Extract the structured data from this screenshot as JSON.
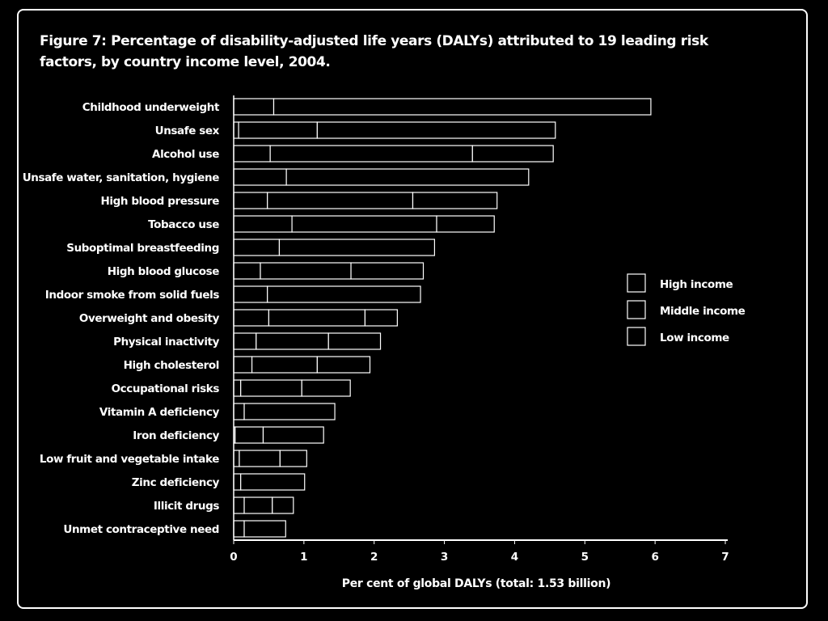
{
  "title": "Figure 7: Percentage of disability-adjusted life years (DALYs) attributed to 19 leading risk factors, by country income level, 2004.",
  "chart_data": {
    "type": "bar",
    "orientation": "horizontal",
    "stacked": true,
    "title": "Figure 7: Percentage of disability-adjusted life years (DALYs) attributed to 19 leading risk factors, by country income level, 2004.",
    "xlabel": "Per cent of global DALYs (total: 1.53 billion)",
    "ylabel": "",
    "xlim": [
      0,
      7
    ],
    "xticks": [
      "0",
      "1",
      "2",
      "3",
      "4",
      "5",
      "6",
      "7"
    ],
    "grid": false,
    "legend_position": "right",
    "categories": [
      "Childhood underweight",
      "Unsafe sex",
      "Alcohol use",
      "Unsafe water, sanitation, hygiene",
      "High blood pressure",
      "Tobacco use",
      "Suboptimal breastfeeding",
      "High blood glucose",
      "Indoor smoke from solid fuels",
      "Overweight and obesity",
      "Physical inactivity",
      "High cholesterol",
      "Occupational risks",
      "Vitamin A deficiency",
      "Iron deficiency",
      "Low fruit and vegetable intake",
      "Zinc deficiency",
      "Illicit drugs",
      "Unmet contraceptive need"
    ],
    "series": [
      {
        "name": "High income",
        "values": [
          0.0,
          0.07,
          0.52,
          0.0,
          0.48,
          0.83,
          0.0,
          0.38,
          0.0,
          0.5,
          0.32,
          0.26,
          0.1,
          0.0,
          0.02,
          0.08,
          0.0,
          0.15,
          0.0
        ]
      },
      {
        "name": "Middle income",
        "values": [
          0.57,
          1.12,
          2.88,
          0.75,
          2.07,
          2.06,
          0.65,
          1.29,
          0.48,
          1.37,
          1.03,
          0.93,
          0.87,
          0.15,
          0.4,
          0.58,
          0.1,
          0.4,
          0.15
        ]
      },
      {
        "name": "Low income",
        "values": [
          5.37,
          3.39,
          1.15,
          3.45,
          1.2,
          0.82,
          2.21,
          1.03,
          2.18,
          0.46,
          0.74,
          0.75,
          0.69,
          1.29,
          0.86,
          0.38,
          0.91,
          0.3,
          0.59
        ]
      }
    ]
  }
}
